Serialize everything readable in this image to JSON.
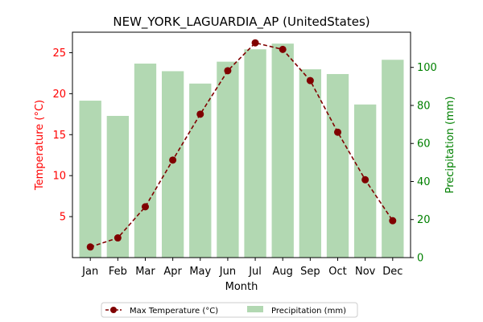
{
  "chart_data": {
    "type": "bar+line",
    "title": "NEW_YORK_LAGUARDIA_AP (UnitedStates)",
    "xlabel": "Month",
    "categories": [
      "Jan",
      "Feb",
      "Mar",
      "Apr",
      "May",
      "Jun",
      "Jul",
      "Aug",
      "Sep",
      "Oct",
      "Nov",
      "Dec"
    ],
    "left_axis": {
      "label": "Temperature (°C)",
      "ylim": [
        0,
        27.5
      ],
      "ticks": [
        5,
        10,
        15,
        20,
        25
      ],
      "color": "#ff0000"
    },
    "right_axis": {
      "label": "Precipitation (mm)",
      "ylim": [
        0,
        118.5
      ],
      "ticks": [
        0,
        20,
        40,
        60,
        80,
        100
      ],
      "color": "#008000"
    },
    "series": [
      {
        "name": "Max Temperature (°C)",
        "type": "line",
        "axis": "left",
        "color": "#800000",
        "values": [
          1.3,
          2.4,
          6.2,
          11.9,
          17.5,
          22.8,
          26.2,
          25.4,
          21.6,
          15.3,
          9.5,
          4.5
        ]
      },
      {
        "name": "Precipitation (mm)",
        "type": "bar",
        "axis": "right",
        "color": "#b2d8b2",
        "values": [
          82.5,
          74.5,
          102,
          98,
          91.5,
          103,
          109.5,
          112.5,
          99,
          96.5,
          80.5,
          104
        ]
      }
    ],
    "legend_position": "bottom-center",
    "grid": false
  }
}
